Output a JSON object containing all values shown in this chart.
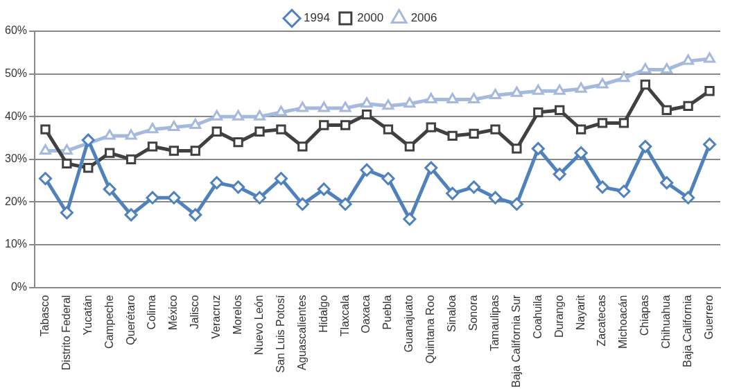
{
  "chart_data": {
    "type": "line",
    "categories": [
      "Tabasco",
      "Distrito Federal",
      "Yucatán",
      "Campeche",
      "Querétaro",
      "Colima",
      "México",
      "Jalisco",
      "Veracruz",
      "Morelos",
      "Nuevo León",
      "San Luis Potosí",
      "Aguascalientes",
      "Hidalgo",
      "Tlaxcala",
      "Oaxaca",
      "Puebla",
      "Guanajuato",
      "Quintana Roo",
      "Sinaloa",
      "Sonora",
      "Tamaulipas",
      "Baja California Sur",
      "Coahuila",
      "Durango",
      "Nayarit",
      "Zacatecas",
      "Michoacán",
      "Chiapas",
      "Chihuahua",
      "Baja California",
      "Guerrero"
    ],
    "series": [
      {
        "name": "1994",
        "color": "#4f81bd",
        "marker": "diamond",
        "values": [
          25.5,
          17.5,
          34.5,
          23,
          17,
          21,
          21,
          17,
          24.5,
          23.5,
          21,
          25.5,
          19.5,
          23,
          19.5,
          27.5,
          25.5,
          16,
          28,
          22,
          23.5,
          21,
          19.5,
          32.5,
          26.5,
          31.5,
          23.5,
          22.5,
          33,
          24.5,
          21,
          33.5
        ]
      },
      {
        "name": "2000",
        "color": "#404040",
        "marker": "square",
        "values": [
          37,
          29,
          28,
          31.5,
          30,
          33,
          32,
          32,
          36.5,
          34,
          36.5,
          37,
          33,
          38,
          38,
          40.5,
          37,
          33,
          37.5,
          35.5,
          36,
          37,
          32.5,
          41,
          41.5,
          37,
          38.5,
          38.5,
          47.5,
          41.5,
          42.5,
          46
        ]
      },
      {
        "name": "2006",
        "color": "#a5b8dd",
        "marker": "triangle",
        "values": [
          32,
          32,
          null,
          35.5,
          35.5,
          37,
          37.5,
          38,
          40,
          40,
          40,
          41,
          42,
          42,
          42,
          43,
          42.5,
          43,
          44,
          44,
          44,
          45,
          45.5,
          46,
          46,
          46.5,
          47.5,
          49,
          51,
          51,
          53,
          53.5
        ]
      }
    ],
    "ylim": [
      0,
      60
    ],
    "yticks": [
      {
        "value": 0,
        "label": "0%"
      },
      {
        "value": 10,
        "label": "10%"
      },
      {
        "value": 20,
        "label": "20%"
      },
      {
        "value": 30,
        "label": "30%"
      },
      {
        "value": 40,
        "label": "40%"
      },
      {
        "value": 50,
        "label": "50%"
      },
      {
        "value": 60,
        "label": "60%"
      }
    ],
    "grid": "y",
    "legend": "top",
    "line_style": "solid"
  }
}
